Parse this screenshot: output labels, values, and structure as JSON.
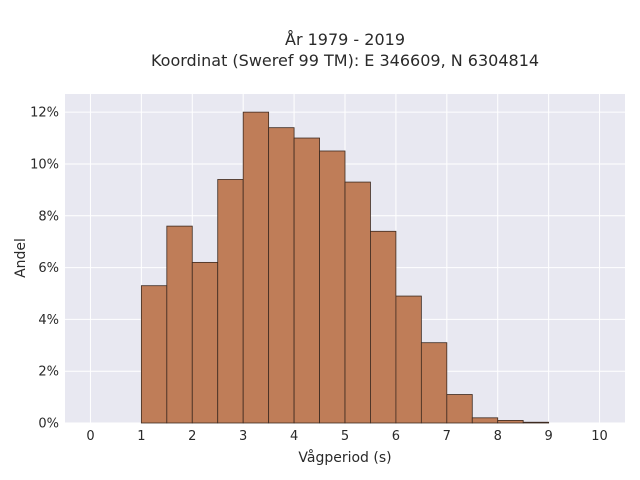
{
  "chart_data": {
    "type": "bar",
    "title_line1": "År 1979 - 2019",
    "title_line2": "Koordinat (Sweref 99 TM): E 346609, N 6304814",
    "xlabel": "Vågperiod (s)",
    "ylabel": "Andel",
    "xlim": [
      -0.5,
      10.5
    ],
    "ylim": [
      0,
      0.127
    ],
    "x_ticks": [
      0,
      1,
      2,
      3,
      4,
      5,
      6,
      7,
      8,
      9,
      10
    ],
    "y_ticks": [
      0,
      0.02,
      0.04,
      0.06,
      0.08,
      0.1,
      0.12
    ],
    "y_tick_labels": [
      "0%",
      "2%",
      "4%",
      "6%",
      "8%",
      "10%",
      "12%"
    ],
    "bin_width": 0.5,
    "bins": [
      {
        "start": 1.0,
        "value": 0.053
      },
      {
        "start": 1.5,
        "value": 0.076
      },
      {
        "start": 2.0,
        "value": 0.062
      },
      {
        "start": 2.5,
        "value": 0.094
      },
      {
        "start": 3.0,
        "value": 0.12
      },
      {
        "start": 3.5,
        "value": 0.114
      },
      {
        "start": 4.0,
        "value": 0.11
      },
      {
        "start": 4.5,
        "value": 0.105
      },
      {
        "start": 5.0,
        "value": 0.093
      },
      {
        "start": 5.5,
        "value": 0.074
      },
      {
        "start": 6.0,
        "value": 0.049
      },
      {
        "start": 6.5,
        "value": 0.031
      },
      {
        "start": 7.0,
        "value": 0.011
      },
      {
        "start": 7.5,
        "value": 0.002
      },
      {
        "start": 8.0,
        "value": 0.001
      },
      {
        "start": 8.5,
        "value": 0.0003
      }
    ],
    "grid": true,
    "bar_color": "#bf7d58",
    "bar_edge_color": "#3d2a20",
    "plot_bg_color": "#e8e8f1",
    "grid_color": "#ffffff"
  }
}
